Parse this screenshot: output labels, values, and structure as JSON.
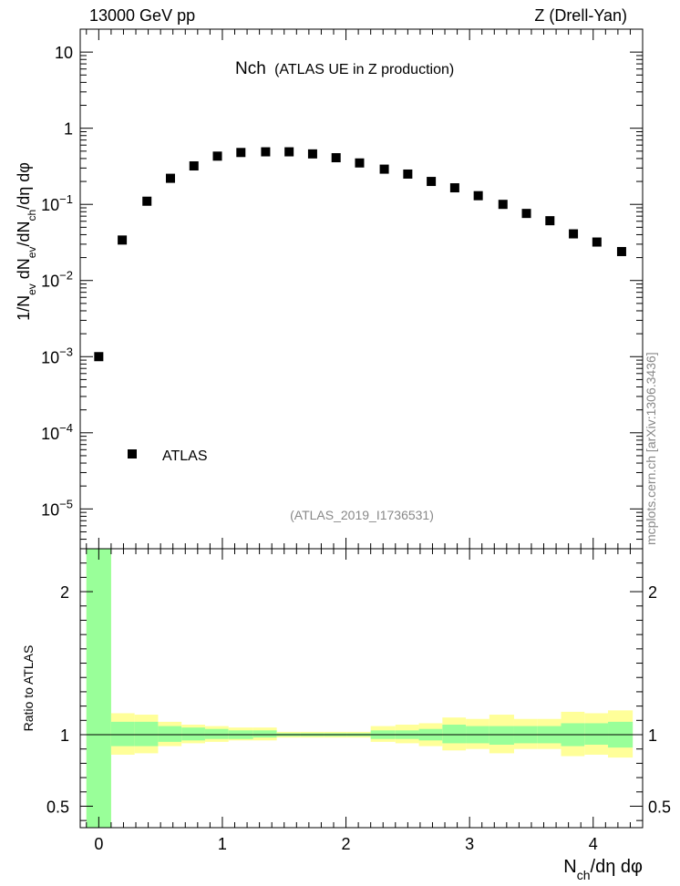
{
  "header": {
    "left": "13000 GeV pp",
    "right": "Z (Drell-Yan)"
  },
  "side_label": "mcplots.cern.ch [arXiv:1306.3436]",
  "chart_data": [
    {
      "type": "scatter",
      "title": "Nch",
      "subtitle": "(ATLAS UE in Z production)",
      "ylabel": "1/N_ev dN_ev/dN_ch/dη dφ",
      "yscale": "log",
      "ylim": [
        3e-06,
        20
      ],
      "xlim": [
        -0.15,
        4.4
      ],
      "yticks": [
        {
          "v": 1e-05,
          "base": "10",
          "exp": "−5"
        },
        {
          "v": 0.0001,
          "base": "10",
          "exp": "−4"
        },
        {
          "v": 0.001,
          "base": "10",
          "exp": "−3"
        },
        {
          "v": 0.01,
          "base": "10",
          "exp": "−2"
        },
        {
          "v": 0.1,
          "base": "10",
          "exp": "−1"
        },
        {
          "v": 1,
          "base": "1",
          "exp": ""
        },
        {
          "v": 10,
          "base": "10",
          "exp": ""
        }
      ],
      "legend": [
        {
          "name": "ATLAS",
          "marker": "square",
          "placement": "bottom-left"
        }
      ],
      "annotation": "(ATLAS_2019_I1736531)",
      "series": [
        {
          "name": "ATLAS",
          "color": "#000000",
          "x": [
            0.0,
            0.19,
            0.39,
            0.58,
            0.77,
            0.96,
            1.15,
            1.35,
            1.54,
            1.73,
            1.92,
            2.11,
            2.31,
            2.5,
            2.69,
            2.88,
            3.07,
            3.27,
            3.46,
            3.65,
            3.84,
            4.03,
            4.23
          ],
          "y": [
            0.001,
            0.034,
            0.11,
            0.22,
            0.32,
            0.43,
            0.48,
            0.49,
            0.49,
            0.46,
            0.41,
            0.35,
            0.29,
            0.25,
            0.2,
            0.165,
            0.13,
            0.1,
            0.076,
            0.061,
            0.041,
            0.032,
            0.024
          ]
        }
      ]
    },
    {
      "type": "area",
      "ylabel": "Ratio to ATLAS",
      "xlabel": "N_ch/dη dφ",
      "xlim": [
        -0.15,
        4.4
      ],
      "ylim": [
        0.35,
        2.3
      ],
      "xticks": [
        0,
        1,
        2,
        3,
        4
      ],
      "yticks": [
        0.5,
        1,
        2
      ],
      "reference": 1,
      "colors": {
        "stat": "#99ff99",
        "total": "#ffff99"
      },
      "bins": {
        "edges": [
          -0.1,
          0.1,
          0.29,
          0.48,
          0.67,
          0.86,
          1.05,
          1.25,
          1.44,
          1.63,
          1.82,
          2.01,
          2.2,
          2.4,
          2.59,
          2.78,
          2.97,
          3.16,
          3.36,
          3.55,
          3.74,
          3.93,
          4.12,
          4.32
        ],
        "stat_lo": [
          0.35,
          0.92,
          0.92,
          0.95,
          0.96,
          0.97,
          0.97,
          0.98,
          0.99,
          0.99,
          0.99,
          0.99,
          0.97,
          0.97,
          0.96,
          0.94,
          0.94,
          0.93,
          0.94,
          0.94,
          0.92,
          0.93,
          0.91
        ],
        "stat_hi": [
          2.3,
          1.09,
          1.09,
          1.06,
          1.05,
          1.04,
          1.03,
          1.03,
          1.01,
          1.01,
          1.01,
          1.01,
          1.03,
          1.03,
          1.04,
          1.07,
          1.06,
          1.06,
          1.06,
          1.06,
          1.08,
          1.08,
          1.09
        ],
        "tot_lo": [
          0.35,
          0.86,
          0.87,
          0.92,
          0.94,
          0.95,
          0.96,
          0.96,
          0.98,
          0.98,
          0.98,
          0.98,
          0.95,
          0.94,
          0.92,
          0.89,
          0.9,
          0.87,
          0.9,
          0.9,
          0.85,
          0.86,
          0.84
        ],
        "tot_hi": [
          2.3,
          1.15,
          1.14,
          1.09,
          1.07,
          1.06,
          1.05,
          1.05,
          1.02,
          1.02,
          1.02,
          1.02,
          1.06,
          1.07,
          1.08,
          1.12,
          1.11,
          1.14,
          1.11,
          1.11,
          1.16,
          1.15,
          1.17
        ]
      }
    }
  ]
}
